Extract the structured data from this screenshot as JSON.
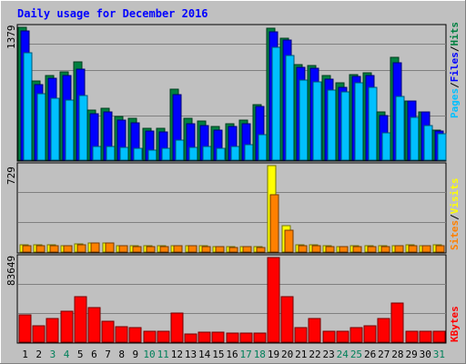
{
  "chart_data": {
    "type": "bar",
    "title": "Daily usage for December 2016",
    "days": [
      "1",
      "2",
      "3",
      "4",
      "5",
      "6",
      "7",
      "8",
      "9",
      "10",
      "11",
      "12",
      "13",
      "14",
      "15",
      "16",
      "17",
      "18",
      "19",
      "20",
      "21",
      "22",
      "23",
      "24",
      "25",
      "26",
      "27",
      "28",
      "29",
      "30",
      "31"
    ],
    "weekend_days": [
      "3",
      "4",
      "10",
      "11",
      "17",
      "18",
      "24",
      "25",
      "31"
    ],
    "panels": [
      {
        "name": "hits-files-pages",
        "ymax_label": "1379",
        "ymax": 1379,
        "legend": [
          "Pages",
          "/",
          "Files",
          "/",
          "Hits"
        ],
        "legend_colors": [
          "#00c0ff",
          "#000000",
          "#0000ff",
          "#000000",
          "#008040"
        ],
        "series": [
          {
            "name": "Hits",
            "color": "#008040",
            "values": [
              1379,
              820,
              880,
              920,
              1020,
              520,
              540,
              450,
              430,
              330,
              330,
              740,
              430,
              410,
              350,
              380,
              420,
              580,
              1370,
              1270,
              990,
              980,
              880,
              800,
              890,
              910,
              500,
              1070,
              610,
              500,
              310
            ]
          },
          {
            "name": "Files",
            "color": "#0000ff",
            "values": [
              1340,
              780,
              850,
              880,
              940,
              480,
              500,
              420,
              390,
              300,
              290,
              680,
              380,
              360,
              310,
              350,
              380,
              560,
              1330,
              1250,
              960,
              950,
              840,
              760,
              870,
              880,
              460,
              1010,
              610,
              500,
              300
            ]
          },
          {
            "name": "Pages",
            "color": "#00c0ff",
            "values": [
              1110,
              690,
              640,
              620,
              670,
              140,
              140,
              130,
              120,
              100,
              120,
              210,
              130,
              140,
              120,
              140,
              160,
              260,
              1170,
              1090,
              830,
              810,
              730,
              710,
              800,
              760,
              280,
              660,
              440,
              360,
              270
            ]
          }
        ]
      },
      {
        "name": "visits-sites",
        "ymax_label": "729",
        "ymax": 729,
        "legend": [
          "Sites",
          "/",
          "Visits"
        ],
        "legend_colors": [
          "#ff8000",
          "#000000",
          "#ffff00"
        ],
        "series": [
          {
            "name": "Visits",
            "color": "#ffff00",
            "values": [
              63,
              58,
              58,
              56,
              66,
              80,
              78,
              56,
              53,
              52,
              55,
              56,
              56,
              53,
              49,
              47,
              49,
              44,
              729,
              220,
              59,
              58,
              50,
              48,
              53,
              55,
              50,
              55,
              59,
              56,
              58
            ]
          },
          {
            "name": "Sites",
            "color": "#ff8000",
            "values": [
              56,
              52,
              51,
              51,
              60,
              75,
              73,
              51,
              48,
              47,
              49,
              51,
              51,
              48,
              44,
              42,
              44,
              40,
              484,
              186,
              52,
              52,
              45,
              43,
              47,
              49,
              45,
              50,
              54,
              51,
              54
            ]
          }
        ]
      },
      {
        "name": "kbytes",
        "ymax_label": "83649",
        "ymax": 83649,
        "legend": [
          "KBytes"
        ],
        "legend_colors": [
          "#ff0000"
        ],
        "series": [
          {
            "name": "KBytes",
            "color": "#ff0000",
            "values": [
              27000,
              16000,
              23000,
              31000,
              45000,
              34000,
              21000,
              15000,
              14000,
              11000,
              11000,
              29000,
              8000,
              10000,
              10000,
              9000,
              9000,
              9000,
              83649,
              45000,
              14000,
              23000,
              11000,
              11000,
              14000,
              16000,
              23000,
              39000,
              11000,
              11000,
              11000
            ]
          }
        ]
      }
    ]
  }
}
